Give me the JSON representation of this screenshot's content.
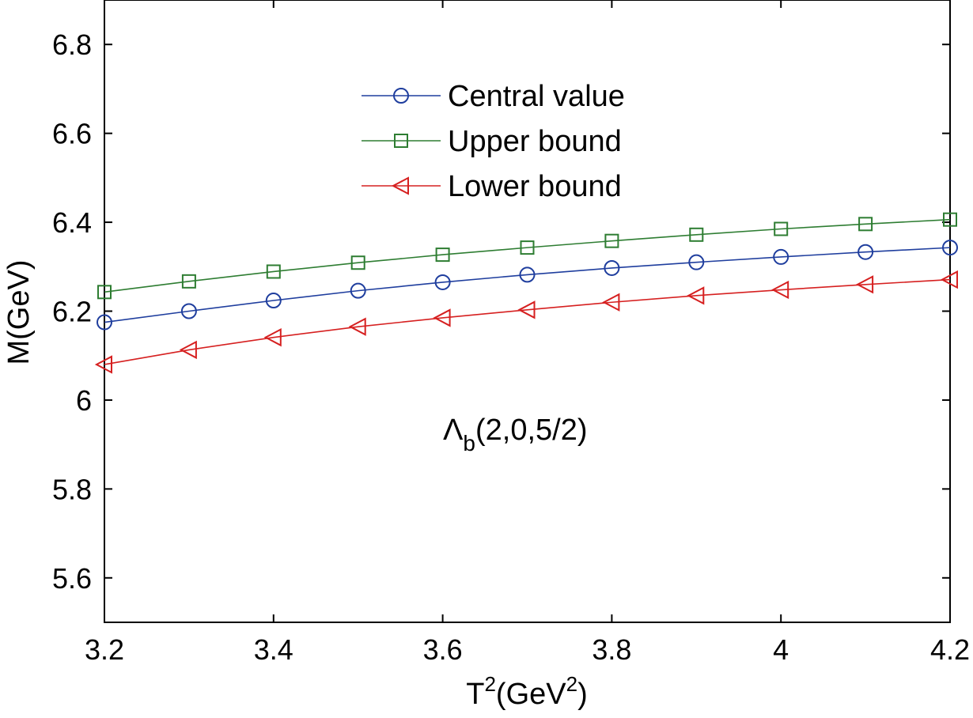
{
  "chart_data": {
    "type": "line",
    "title": "",
    "xlabel": {
      "base": "T",
      "sup": "2",
      "unit_open": "(GeV",
      "unit_sup": "2",
      "unit_close": ")"
    },
    "ylabel": "M(GeV)",
    "xlim": [
      3.2,
      4.2
    ],
    "ylim": [
      5.5,
      6.9
    ],
    "xticks": [
      3.2,
      3.4,
      3.6,
      3.8,
      4.0,
      4.2
    ],
    "xtick_labels": [
      "3.2",
      "3.4",
      "3.6",
      "3.8",
      "4",
      "4.2"
    ],
    "yticks": [
      5.6,
      5.8,
      6.0,
      6.2,
      6.4,
      6.6,
      6.8
    ],
    "ytick_labels": [
      "5.6",
      "5.8",
      "6",
      "6.2",
      "6.4",
      "6.6",
      "6.8"
    ],
    "grid": false,
    "legend_position": "top-center",
    "x": [
      3.2,
      3.3,
      3.4,
      3.5,
      3.6,
      3.7,
      3.8,
      3.9,
      4.0,
      4.1,
      4.2
    ],
    "series": [
      {
        "name": "Central value",
        "color": "#1f3e9e",
        "marker": "circle",
        "values": [
          6.175,
          6.2,
          6.224,
          6.246,
          6.265,
          6.282,
          6.297,
          6.31,
          6.322,
          6.333,
          6.343
        ]
      },
      {
        "name": "Upper bound",
        "color": "#2e7d32",
        "marker": "square",
        "values": [
          6.243,
          6.267,
          6.289,
          6.309,
          6.327,
          6.343,
          6.358,
          6.372,
          6.385,
          6.396,
          6.406
        ]
      },
      {
        "name": "Lower bound",
        "color": "#d62020",
        "marker": "triangle-left",
        "values": [
          6.08,
          6.113,
          6.141,
          6.165,
          6.185,
          6.203,
          6.22,
          6.235,
          6.248,
          6.26,
          6.271
        ]
      }
    ],
    "annotation": {
      "main": "Λ",
      "sub": "b",
      "rest": "(2,0,5/2)"
    }
  }
}
